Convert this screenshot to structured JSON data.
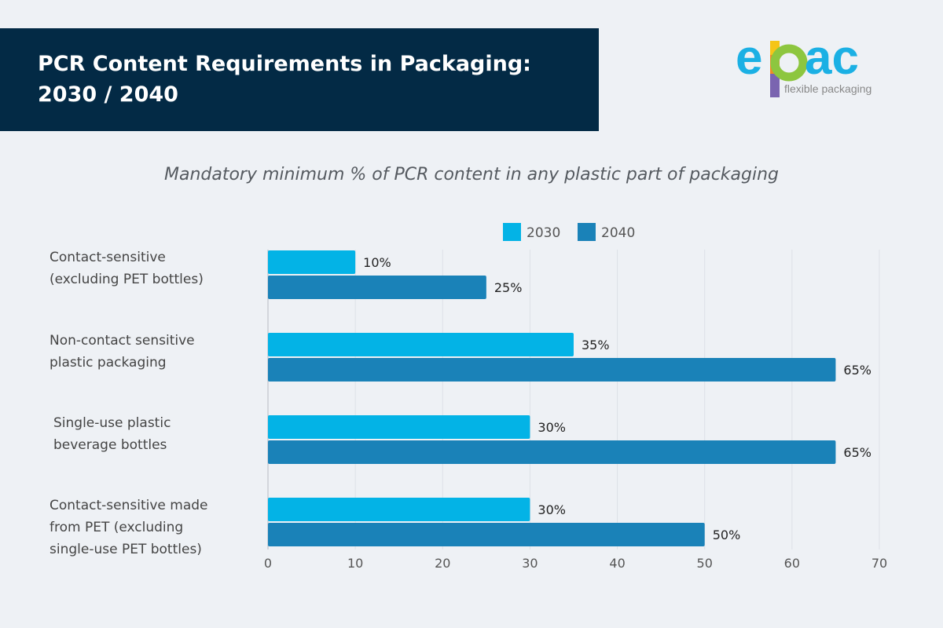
{
  "header": {
    "title": "PCR Content Requirements in Packaging: 2030 / 2040"
  },
  "logo": {
    "wordmark": "epac",
    "tagline": "flexible packaging"
  },
  "chart_data": {
    "type": "bar",
    "orientation": "horizontal",
    "title": "Mandatory minimum % of PCR content in any plastic part of packaging",
    "categories": [
      "Contact-sensitive\n(excluding PET bottles)",
      "Non-contact sensitive\nplastic packaging",
      "Single-use plastic\nbeverage bottles",
      "Contact-sensitive made\nfrom PET (excluding\nsingle-use PET bottles)"
    ],
    "series": [
      {
        "name": "2030",
        "color": "#03b3e6",
        "values": [
          10,
          35,
          30,
          30
        ],
        "labels": [
          "10%",
          "35%",
          "30%",
          "30%"
        ]
      },
      {
        "name": "2040",
        "color": "#1a82b8",
        "values": [
          25,
          65,
          65,
          50
        ],
        "labels": [
          "25%",
          "65%",
          "65%",
          "50%"
        ]
      }
    ],
    "xlim": [
      0,
      70
    ],
    "xticks": [
      "0",
      "10",
      "20",
      "30",
      "40",
      "50",
      "60",
      "70"
    ],
    "grid": true,
    "legend": "top"
  }
}
